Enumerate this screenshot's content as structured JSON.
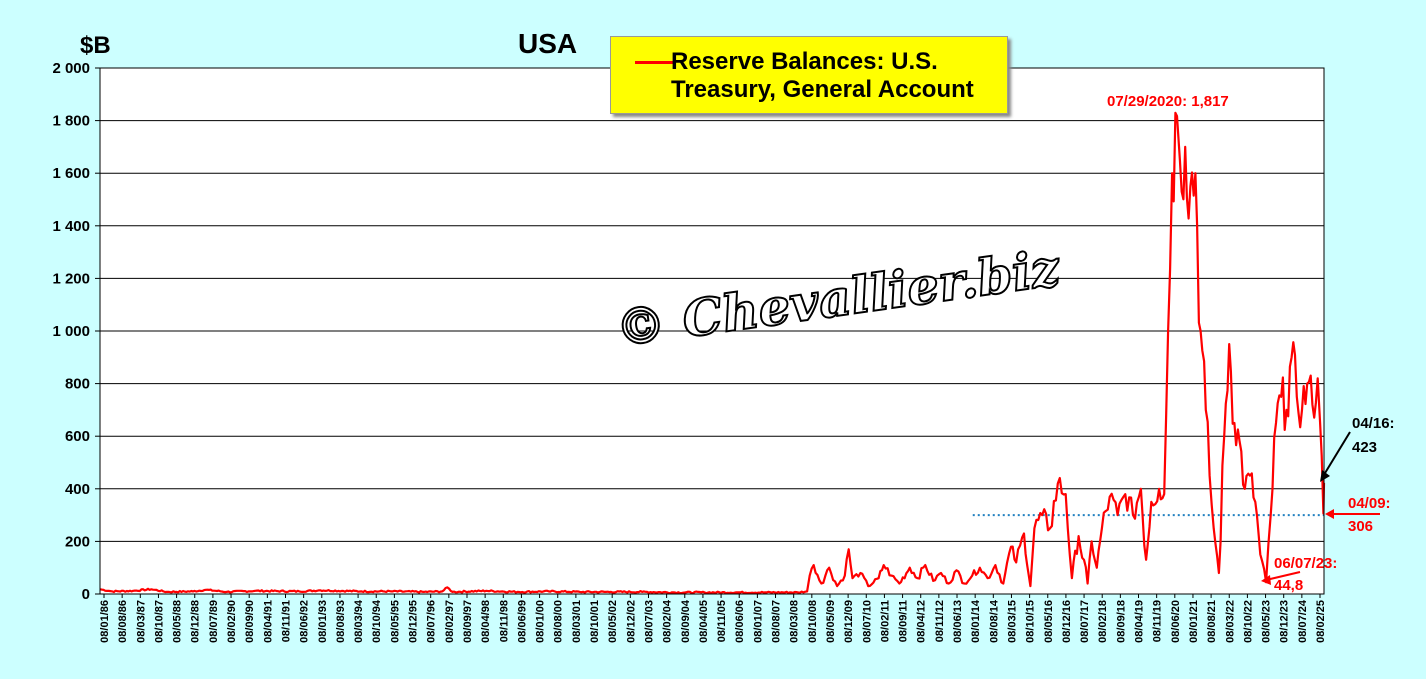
{
  "chart_data": {
    "type": "line",
    "title": "USA",
    "ylabel": "$B",
    "ylim": [
      0,
      2000
    ],
    "yticks": [
      "0",
      "200",
      "400",
      "600",
      "800",
      "1 000",
      "1 200",
      "1 400",
      "1 600",
      "1 800",
      "2 000"
    ],
    "ytick_values": [
      0,
      200,
      400,
      600,
      800,
      1000,
      1200,
      1400,
      1600,
      1800,
      2000
    ],
    "xlim": [
      "1986-01-08",
      "2025-04-16"
    ],
    "xticks": [
      "08/01/86",
      "08/08/86",
      "08/03/87",
      "08/10/87",
      "08/05/88",
      "08/12/88",
      "08/07/89",
      "08/02/90",
      "08/09/90",
      "08/04/91",
      "08/11/91",
      "08/06/92",
      "08/01/93",
      "08/08/93",
      "08/03/94",
      "08/10/94",
      "08/05/95",
      "08/12/95",
      "08/07/96",
      "08/02/97",
      "08/09/97",
      "08/04/98",
      "08/11/98",
      "08/06/99",
      "08/01/00",
      "08/08/00",
      "08/03/01",
      "08/10/01",
      "08/05/02",
      "08/12/02",
      "08/07/03",
      "08/02/04",
      "08/09/04",
      "08/04/05",
      "08/11/05",
      "08/06/06",
      "08/01/07",
      "08/08/07",
      "08/03/08",
      "08/10/08",
      "08/05/09",
      "08/12/09",
      "08/07/10",
      "08/02/11",
      "08/09/11",
      "08/04/12",
      "08/11/12",
      "08/06/13",
      "08/01/14",
      "08/08/14",
      "08/03/15",
      "08/10/15",
      "08/05/16",
      "08/12/16",
      "08/07/17",
      "08/02/18",
      "08/09/18",
      "08/04/19",
      "08/11/19",
      "08/06/20",
      "08/01/21",
      "08/08/21",
      "08/03/22",
      "08/10/22",
      "08/05/23",
      "08/12/23",
      "08/07/24",
      "08/02/25"
    ],
    "grid": true,
    "legend_placement": "top-center",
    "series": [
      {
        "name": "Reserve Balances: U.S. Treasury, General Account",
        "color": "#ff0000",
        "points": [
          [
            "1986-01-08",
            18
          ],
          [
            "1986-06-01",
            10
          ],
          [
            "1987-02-01",
            12
          ],
          [
            "1987-09-01",
            18
          ],
          [
            "1988-03-01",
            8
          ],
          [
            "1989-01-01",
            10
          ],
          [
            "1989-06-01",
            16
          ],
          [
            "1990-02-01",
            8
          ],
          [
            "1991-01-01",
            12
          ],
          [
            "1992-06-01",
            10
          ],
          [
            "1993-02-01",
            14
          ],
          [
            "1994-06-01",
            10
          ],
          [
            "1995-06-01",
            10
          ],
          [
            "1996-06-01",
            8
          ],
          [
            "1997-01-01",
            10
          ],
          [
            "1997-03-01",
            25
          ],
          [
            "1997-05-01",
            8
          ],
          [
            "1998-06-01",
            12
          ],
          [
            "1999-06-01",
            8
          ],
          [
            "2000-06-01",
            10
          ],
          [
            "2001-06-01",
            8
          ],
          [
            "2002-06-01",
            8
          ],
          [
            "2003-06-01",
            8
          ],
          [
            "2004-06-01",
            6
          ],
          [
            "2005-06-01",
            6
          ],
          [
            "2006-06-01",
            6
          ],
          [
            "2007-06-01",
            6
          ],
          [
            "2008-06-01",
            6
          ],
          [
            "2008-09-15",
            10
          ],
          [
            "2008-10-15",
            70
          ],
          [
            "2008-12-01",
            110
          ],
          [
            "2009-03-01",
            40
          ],
          [
            "2009-06-01",
            100
          ],
          [
            "2009-09-01",
            30
          ],
          [
            "2009-12-01",
            70
          ],
          [
            "2010-01-15",
            170
          ],
          [
            "2010-03-01",
            60
          ],
          [
            "2010-06-01",
            80
          ],
          [
            "2010-09-01",
            30
          ],
          [
            "2011-01-01",
            60
          ],
          [
            "2011-03-01",
            110
          ],
          [
            "2011-06-01",
            70
          ],
          [
            "2011-09-01",
            40
          ],
          [
            "2012-01-01",
            100
          ],
          [
            "2012-04-01",
            60
          ],
          [
            "2012-07-01",
            110
          ],
          [
            "2012-10-01",
            50
          ],
          [
            "2013-01-01",
            80
          ],
          [
            "2013-04-01",
            40
          ],
          [
            "2013-07-01",
            90
          ],
          [
            "2013-10-01",
            40
          ],
          [
            "2014-01-01",
            70
          ],
          [
            "2014-04-01",
            100
          ],
          [
            "2014-07-01",
            60
          ],
          [
            "2014-10-01",
            110
          ],
          [
            "2015-01-01",
            40
          ],
          [
            "2015-04-01",
            180
          ],
          [
            "2015-06-01",
            120
          ],
          [
            "2015-09-01",
            230
          ],
          [
            "2015-11-15",
            30
          ],
          [
            "2016-01-01",
            250
          ],
          [
            "2016-04-01",
            300
          ],
          [
            "2016-07-01",
            250
          ],
          [
            "2016-10-01",
            420
          ],
          [
            "2017-01-01",
            380
          ],
          [
            "2017-03-15",
            60
          ],
          [
            "2017-06-01",
            220
          ],
          [
            "2017-09-15",
            40
          ],
          [
            "2017-11-01",
            200
          ],
          [
            "2018-01-01",
            100
          ],
          [
            "2018-03-01",
            250
          ],
          [
            "2018-06-01",
            370
          ],
          [
            "2018-09-01",
            300
          ],
          [
            "2018-12-01",
            380
          ],
          [
            "2019-03-01",
            300
          ],
          [
            "2019-06-01",
            400
          ],
          [
            "2019-08-01",
            130
          ],
          [
            "2019-10-01",
            350
          ],
          [
            "2020-01-01",
            400
          ],
          [
            "2020-03-01",
            380
          ],
          [
            "2020-04-15",
            1000
          ],
          [
            "2020-06-01",
            1600
          ],
          [
            "2020-07-29",
            1817
          ],
          [
            "2020-09-01",
            1650
          ],
          [
            "2020-11-01",
            1700
          ],
          [
            "2021-01-01",
            1550
          ],
          [
            "2021-03-01",
            1600
          ],
          [
            "2021-05-01",
            1000
          ],
          [
            "2021-07-01",
            700
          ],
          [
            "2021-08-15",
            450
          ],
          [
            "2021-10-01",
            250
          ],
          [
            "2021-12-01",
            80
          ],
          [
            "2022-02-01",
            600
          ],
          [
            "2022-04-01",
            950
          ],
          [
            "2022-06-01",
            650
          ],
          [
            "2022-08-01",
            580
          ],
          [
            "2022-10-01",
            400
          ],
          [
            "2022-12-01",
            450
          ],
          [
            "2023-02-01",
            350
          ],
          [
            "2023-04-01",
            150
          ],
          [
            "2023-06-07",
            44.8
          ],
          [
            "2023-08-01",
            300
          ],
          [
            "2023-10-01",
            650
          ],
          [
            "2023-12-01",
            750
          ],
          [
            "2024-02-01",
            700
          ],
          [
            "2024-04-01",
            900
          ],
          [
            "2024-06-01",
            750
          ],
          [
            "2024-08-01",
            700
          ],
          [
            "2024-10-01",
            800
          ],
          [
            "2024-12-01",
            720
          ],
          [
            "2025-02-01",
            820
          ],
          [
            "2025-03-01",
            650
          ],
          [
            "2025-04-09",
            306
          ],
          [
            "2025-04-16",
            423
          ]
        ]
      }
    ],
    "reference_line": {
      "value": 300,
      "from": "2014-01-08",
      "color": "#2080c0"
    },
    "annotations": [
      {
        "text": "07/29/2020: 1,817",
        "color": "#ff0000"
      },
      {
        "text": "04/16:",
        "color": "#000000"
      },
      {
        "text": "423",
        "color": "#000000"
      },
      {
        "text": "04/09:",
        "color": "#ff0000"
      },
      {
        "text": "306",
        "color": "#ff0000"
      },
      {
        "text": "06/07/23:",
        "color": "#ff0000"
      },
      {
        "text": "44,8",
        "color": "#ff0000"
      }
    ],
    "watermark": "© Chevallier.biz"
  }
}
